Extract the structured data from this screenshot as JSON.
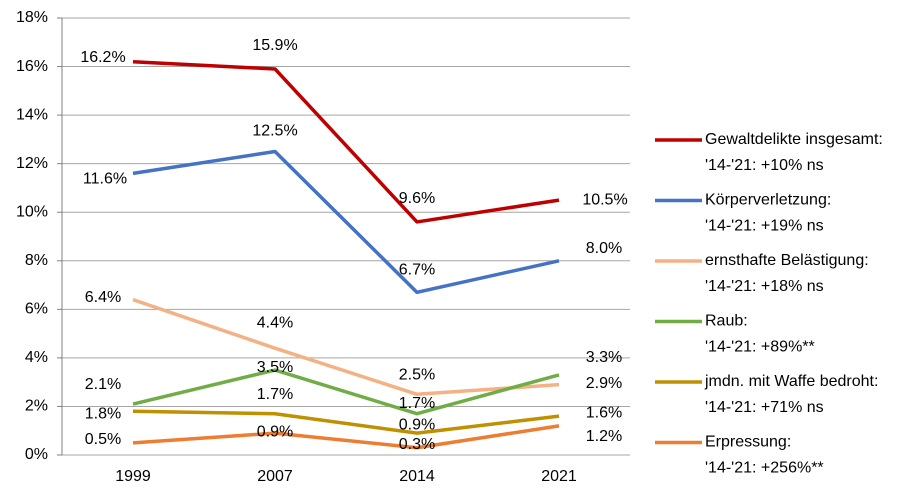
{
  "chart_data": {
    "type": "line",
    "categories": [
      "1999",
      "2007",
      "2014",
      "2021"
    ],
    "ylim": [
      0,
      18
    ],
    "yticks": [
      {
        "value": 0,
        "label": "0%"
      },
      {
        "value": 2,
        "label": "2%"
      },
      {
        "value": 4,
        "label": "4%"
      },
      {
        "value": 6,
        "label": "6%"
      },
      {
        "value": 8,
        "label": "8%"
      },
      {
        "value": 10,
        "label": "10%"
      },
      {
        "value": 12,
        "label": "12%"
      },
      {
        "value": 14,
        "label": "14%"
      },
      {
        "value": 16,
        "label": "16%"
      },
      {
        "value": 18,
        "label": "18%"
      }
    ],
    "grid": true,
    "legend": "right",
    "series": [
      {
        "name": "Gewaltdelikte insgesamt:",
        "note": "'14-'21: +10% ns",
        "color": "#c00000",
        "values": [
          16.2,
          15.9,
          9.6,
          10.5
        ],
        "value_labels": [
          "16.2%",
          "15.9%",
          "9.6%",
          "10.5%"
        ]
      },
      {
        "name": "Körperverletzung:",
        "note": "'14-'21: +19% ns",
        "color": "#4472c4",
        "values": [
          11.6,
          12.5,
          6.7,
          8.0
        ],
        "value_labels": [
          "11.6%",
          "12.5%",
          "6.7%",
          "8.0%"
        ]
      },
      {
        "name": "ernsthafte Belästigung:",
        "note": "'14-'21: +18% ns",
        "color": "#f4b183",
        "values": [
          6.4,
          4.4,
          2.5,
          2.9
        ],
        "value_labels": [
          "6.4%",
          "4.4%",
          "2.5%",
          "2.9%"
        ]
      },
      {
        "name": "Raub:",
        "note": "'14-'21: +89%**",
        "color": "#70ad47",
        "values": [
          2.1,
          3.5,
          1.7,
          3.3
        ],
        "value_labels": [
          "2.1%",
          "3.5%",
          "1.7%",
          "3.3%"
        ]
      },
      {
        "name": "jmdn. mit Waffe bedroht:",
        "note": "'14-'21: +71% ns",
        "color": "#bf9000",
        "values": [
          1.8,
          1.7,
          0.9,
          1.6
        ],
        "value_labels": [
          "1.8%",
          "1.7%",
          "0.9%",
          "1.6%"
        ]
      },
      {
        "name": "Erpressung:",
        "note": "'14-'21: +256%**",
        "color": "#ed7d31",
        "values": [
          0.5,
          0.9,
          0.3,
          1.2
        ],
        "value_labels": [
          "0.5%",
          "0.9%",
          "0.3%",
          "1.2%"
        ]
      }
    ]
  }
}
